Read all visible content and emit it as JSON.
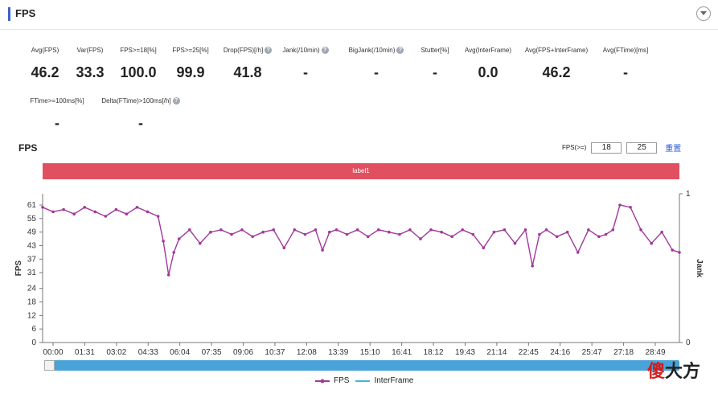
{
  "header": {
    "title": "FPS",
    "toggle_icon": "chevron-down-icon"
  },
  "metrics_row1": [
    {
      "label": "Avg(FPS)",
      "value": "46.2",
      "help": false
    },
    {
      "label": "Var(FPS)",
      "value": "33.3",
      "help": false
    },
    {
      "label": "FPS>=18[%]",
      "value": "100.0",
      "help": false
    },
    {
      "label": "FPS>=25[%]",
      "value": "99.9",
      "help": false
    },
    {
      "label": "Drop(FPS)[/h]",
      "value": "41.8",
      "help": true
    },
    {
      "label": "Jank(/10min)",
      "value": "-",
      "help": true
    },
    {
      "label": "BigJank(/10min)",
      "value": "-",
      "help": true
    },
    {
      "label": "Stutter[%]",
      "value": "-",
      "help": false
    },
    {
      "label": "Avg(InterFrame)",
      "value": "0.0",
      "help": false
    },
    {
      "label": "Avg(FPS+InterFrame)",
      "value": "46.2",
      "help": false
    },
    {
      "label": "Avg(FTime)[ms]",
      "value": "-",
      "help": false
    }
  ],
  "metrics_row2": [
    {
      "label": "FTime>=100ms[%]",
      "value": "-",
      "help": false
    },
    {
      "label": "Delta(FTime)>100ms[/h]",
      "value": "-",
      "help": true
    }
  ],
  "chart_title": "FPS",
  "filter": {
    "label": "FPS(>=)",
    "value1": "18",
    "value2": "25",
    "reset": "重置"
  },
  "label_bar": "label1",
  "watermark": {
    "char1": "傻",
    "rest": "大方"
  },
  "colors": {
    "fps": "#a0399a",
    "interframe": "#3fb8d8",
    "label_bar": "#e05060",
    "scrollbar": "#4aa3d8",
    "title_accent": "#3a62c9"
  },
  "chart_data": {
    "type": "line",
    "xlabel": "",
    "ylabel": "FPS",
    "y2label": "Jank",
    "y_ticks": [
      0,
      6,
      12,
      18,
      24,
      31,
      37,
      43,
      49,
      55,
      61
    ],
    "y2_ticks": [
      0,
      1
    ],
    "ylim": [
      0,
      66
    ],
    "y2lim": [
      0,
      1
    ],
    "x_ticks": [
      "00:00",
      "01:31",
      "03:02",
      "04:33",
      "06:04",
      "07:35",
      "09:06",
      "10:37",
      "12:08",
      "13:39",
      "15:10",
      "16:41",
      "18:12",
      "19:43",
      "21:14",
      "22:45",
      "24:16",
      "25:47",
      "27:18",
      "28:49"
    ],
    "x_unit": "mm:ss",
    "x_range_seconds": [
      0,
      1820
    ],
    "series": [
      {
        "name": "FPS",
        "x_seconds": [
          0,
          30,
          60,
          90,
          120,
          150,
          180,
          210,
          240,
          270,
          300,
          330,
          345,
          360,
          375,
          390,
          420,
          450,
          480,
          510,
          540,
          570,
          600,
          630,
          660,
          690,
          720,
          750,
          780,
          800,
          820,
          840,
          870,
          900,
          930,
          960,
          990,
          1020,
          1050,
          1080,
          1110,
          1140,
          1170,
          1200,
          1230,
          1260,
          1290,
          1320,
          1350,
          1380,
          1400,
          1420,
          1440,
          1470,
          1500,
          1530,
          1560,
          1590,
          1610,
          1630,
          1650,
          1680,
          1710,
          1740,
          1770,
          1800,
          1820
        ],
        "values": [
          60,
          58,
          59,
          57,
          60,
          58,
          56,
          59,
          57,
          60,
          58,
          56,
          45,
          30,
          40,
          46,
          50,
          44,
          49,
          50,
          48,
          50,
          47,
          49,
          50,
          42,
          50,
          48,
          50,
          41,
          49,
          50,
          48,
          50,
          47,
          50,
          49,
          48,
          50,
          46,
          50,
          49,
          47,
          50,
          48,
          42,
          49,
          50,
          44,
          50,
          34,
          48,
          50,
          47,
          49,
          40,
          50,
          47,
          48,
          50,
          61,
          60,
          50,
          44,
          49,
          41,
          40
        ]
      },
      {
        "name": "InterFrame",
        "x_seconds": [],
        "values": []
      }
    ],
    "legend_position": "bottom-center",
    "grid": false
  }
}
